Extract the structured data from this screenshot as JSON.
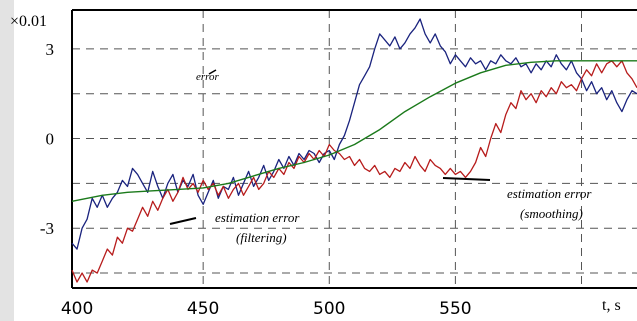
{
  "chart_data": {
    "type": "line",
    "ylabel_scale": "×0.01",
    "xlabel": "t, s",
    "xlim": [
      398,
      622
    ],
    "ylim": [
      -5,
      4.3
    ],
    "x_ticks": [
      400,
      450,
      500,
      550
    ],
    "y_ticks": [
      {
        "value": 3,
        "label": "3"
      },
      {
        "value": 0,
        "label": "0"
      },
      {
        "value": -3,
        "label": "-3"
      }
    ],
    "grid": true,
    "annotations": {
      "error": "error",
      "filter_line1": "estimation error",
      "filter_line2": "(filtering)",
      "smooth_line1": "estimation error",
      "smooth_line2": "(smoothing)"
    },
    "colors": {
      "error": "#1a237e",
      "filtering": "#b71c1c",
      "smoothing": "#1b7a1b"
    },
    "series": [
      {
        "key": "error",
        "points": [
          [
            398,
            -3.5
          ],
          [
            400,
            -3.7
          ],
          [
            402,
            -3.0
          ],
          [
            404,
            -2.7
          ],
          [
            406,
            -2.0
          ],
          [
            408,
            -2.3
          ],
          [
            410,
            -1.9
          ],
          [
            412,
            -2.3
          ],
          [
            414,
            -2.0
          ],
          [
            416,
            -1.8
          ],
          [
            418,
            -1.4
          ],
          [
            420,
            -1.6
          ],
          [
            422,
            -1.0
          ],
          [
            424,
            -1.2
          ],
          [
            426,
            -1.5
          ],
          [
            428,
            -1.8
          ],
          [
            430,
            -1.1
          ],
          [
            432,
            -1.6
          ],
          [
            434,
            -2.0
          ],
          [
            436,
            -1.5
          ],
          [
            438,
            -1.2
          ],
          [
            440,
            -1.8
          ],
          [
            442,
            -1.4
          ],
          [
            444,
            -1.6
          ],
          [
            446,
            -1.2
          ],
          [
            448,
            -1.9
          ],
          [
            450,
            -2.2
          ],
          [
            452,
            -1.8
          ],
          [
            454,
            -1.4
          ],
          [
            456,
            -2.0
          ],
          [
            458,
            -1.6
          ],
          [
            460,
            -1.7
          ],
          [
            462,
            -1.3
          ],
          [
            464,
            -1.9
          ],
          [
            466,
            -1.5
          ],
          [
            468,
            -1.1
          ],
          [
            470,
            -1.6
          ],
          [
            472,
            -1.3
          ],
          [
            474,
            -0.9
          ],
          [
            476,
            -1.4
          ],
          [
            478,
            -1.1
          ],
          [
            480,
            -0.7
          ],
          [
            482,
            -1.0
          ],
          [
            484,
            -0.6
          ],
          [
            486,
            -0.9
          ],
          [
            488,
            -0.5
          ],
          [
            490,
            -0.7
          ],
          [
            492,
            -0.4
          ],
          [
            494,
            -0.5
          ],
          [
            496,
            -0.8
          ],
          [
            498,
            -0.5
          ],
          [
            500,
            -0.4
          ],
          [
            502,
            -0.7
          ],
          [
            504,
            -0.2
          ],
          [
            506,
            0.1
          ],
          [
            508,
            0.6
          ],
          [
            510,
            1.2
          ],
          [
            512,
            1.8
          ],
          [
            514,
            2.1
          ],
          [
            516,
            2.4
          ],
          [
            518,
            3.0
          ],
          [
            520,
            3.5
          ],
          [
            522,
            3.3
          ],
          [
            524,
            3.1
          ],
          [
            526,
            3.4
          ],
          [
            528,
            3.0
          ],
          [
            530,
            3.2
          ],
          [
            532,
            3.5
          ],
          [
            534,
            3.7
          ],
          [
            536,
            4.0
          ],
          [
            538,
            3.5
          ],
          [
            540,
            3.2
          ],
          [
            542,
            3.5
          ],
          [
            544,
            3.1
          ],
          [
            546,
            2.9
          ],
          [
            548,
            2.5
          ],
          [
            550,
            2.8
          ],
          [
            552,
            2.6
          ],
          [
            554,
            2.4
          ],
          [
            556,
            2.7
          ],
          [
            558,
            2.5
          ],
          [
            560,
            2.6
          ],
          [
            562,
            2.3
          ],
          [
            564,
            2.6
          ],
          [
            566,
            2.5
          ],
          [
            568,
            2.8
          ],
          [
            570,
            2.6
          ],
          [
            572,
            2.5
          ],
          [
            574,
            2.7
          ],
          [
            576,
            2.4
          ],
          [
            578,
            2.5
          ],
          [
            580,
            2.2
          ],
          [
            582,
            2.5
          ],
          [
            584,
            2.3
          ],
          [
            586,
            2.6
          ],
          [
            588,
            2.4
          ],
          [
            590,
            2.8
          ],
          [
            592,
            2.5
          ],
          [
            594,
            2.3
          ],
          [
            596,
            2.6
          ],
          [
            598,
            2.2
          ],
          [
            600,
            2.0
          ],
          [
            602,
            1.6
          ],
          [
            604,
            1.9
          ],
          [
            606,
            1.5
          ],
          [
            608,
            1.7
          ],
          [
            610,
            1.3
          ],
          [
            612,
            1.6
          ],
          [
            614,
            1.2
          ],
          [
            616,
            0.9
          ],
          [
            618,
            1.3
          ],
          [
            620,
            1.6
          ],
          [
            622,
            1.5
          ]
        ]
      },
      {
        "key": "filtering",
        "points": [
          [
            398,
            -4.4
          ],
          [
            400,
            -4.8
          ],
          [
            402,
            -4.5
          ],
          [
            404,
            -4.8
          ],
          [
            406,
            -4.4
          ],
          [
            408,
            -4.5
          ],
          [
            410,
            -4.1
          ],
          [
            412,
            -3.7
          ],
          [
            414,
            -3.9
          ],
          [
            416,
            -3.3
          ],
          [
            418,
            -3.5
          ],
          [
            420,
            -3.0
          ],
          [
            422,
            -3.1
          ],
          [
            424,
            -2.7
          ],
          [
            426,
            -2.3
          ],
          [
            428,
            -2.6
          ],
          [
            430,
            -2.1
          ],
          [
            432,
            -2.4
          ],
          [
            434,
            -2.0
          ],
          [
            436,
            -1.7
          ],
          [
            438,
            -2.1
          ],
          [
            440,
            -1.8
          ],
          [
            442,
            -1.3
          ],
          [
            444,
            -1.7
          ],
          [
            446,
            -1.5
          ],
          [
            448,
            -1.8
          ],
          [
            450,
            -1.4
          ],
          [
            452,
            -1.7
          ],
          [
            454,
            -1.5
          ],
          [
            456,
            -1.9
          ],
          [
            458,
            -1.6
          ],
          [
            460,
            -2.0
          ],
          [
            462,
            -1.7
          ],
          [
            464,
            -1.5
          ],
          [
            466,
            -1.9
          ],
          [
            468,
            -1.6
          ],
          [
            470,
            -1.3
          ],
          [
            472,
            -1.7
          ],
          [
            474,
            -1.5
          ],
          [
            476,
            -1.1
          ],
          [
            478,
            -1.3
          ],
          [
            480,
            -1.0
          ],
          [
            482,
            -1.2
          ],
          [
            484,
            -0.8
          ],
          [
            486,
            -1.0
          ],
          [
            488,
            -0.6
          ],
          [
            490,
            -0.8
          ],
          [
            492,
            -0.5
          ],
          [
            494,
            -0.7
          ],
          [
            496,
            -0.4
          ],
          [
            498,
            -0.6
          ],
          [
            500,
            -0.2
          ],
          [
            502,
            -0.4
          ],
          [
            504,
            -0.5
          ],
          [
            506,
            -0.7
          ],
          [
            508,
            -0.6
          ],
          [
            510,
            -0.9
          ],
          [
            512,
            -0.7
          ],
          [
            514,
            -1.0
          ],
          [
            516,
            -1.1
          ],
          [
            518,
            -0.9
          ],
          [
            520,
            -1.2
          ],
          [
            522,
            -1.1
          ],
          [
            524,
            -1.3
          ],
          [
            526,
            -1.0
          ],
          [
            528,
            -1.1
          ],
          [
            530,
            -0.8
          ],
          [
            532,
            -1.0
          ],
          [
            534,
            -0.6
          ],
          [
            536,
            -0.9
          ],
          [
            538,
            -1.1
          ],
          [
            540,
            -0.7
          ],
          [
            542,
            -0.9
          ],
          [
            544,
            -1.0
          ],
          [
            546,
            -1.2
          ],
          [
            548,
            -1.0
          ],
          [
            550,
            -1.2
          ],
          [
            552,
            -1.1
          ],
          [
            554,
            -1.3
          ],
          [
            556,
            -1.1
          ],
          [
            558,
            -0.8
          ],
          [
            560,
            -0.3
          ],
          [
            562,
            -0.6
          ],
          [
            564,
            0.0
          ],
          [
            566,
            0.5
          ],
          [
            568,
            0.2
          ],
          [
            570,
            0.8
          ],
          [
            572,
            1.2
          ],
          [
            574,
            1.0
          ],
          [
            576,
            1.6
          ],
          [
            578,
            1.3
          ],
          [
            580,
            1.5
          ],
          [
            582,
            1.2
          ],
          [
            584,
            1.6
          ],
          [
            586,
            1.4
          ],
          [
            588,
            1.7
          ],
          [
            590,
            1.5
          ],
          [
            592,
            1.9
          ],
          [
            594,
            1.7
          ],
          [
            596,
            1.8
          ],
          [
            598,
            1.6
          ],
          [
            600,
            2.0
          ],
          [
            602,
            2.3
          ],
          [
            604,
            2.1
          ],
          [
            606,
            2.5
          ],
          [
            608,
            2.2
          ],
          [
            610,
            2.5
          ],
          [
            612,
            2.6
          ],
          [
            614,
            2.4
          ],
          [
            616,
            2.6
          ],
          [
            618,
            2.2
          ],
          [
            620,
            2.0
          ],
          [
            622,
            1.7
          ]
        ]
      },
      {
        "key": "smoothing",
        "points": [
          [
            398,
            -2.1
          ],
          [
            410,
            -1.9
          ],
          [
            420,
            -1.8
          ],
          [
            430,
            -1.75
          ],
          [
            440,
            -1.7
          ],
          [
            450,
            -1.65
          ],
          [
            460,
            -1.5
          ],
          [
            470,
            -1.25
          ],
          [
            480,
            -1.0
          ],
          [
            490,
            -0.8
          ],
          [
            500,
            -0.55
          ],
          [
            510,
            -0.2
          ],
          [
            520,
            0.3
          ],
          [
            530,
            0.9
          ],
          [
            540,
            1.4
          ],
          [
            550,
            1.85
          ],
          [
            560,
            2.2
          ],
          [
            570,
            2.45
          ],
          [
            580,
            2.55
          ],
          [
            590,
            2.6
          ],
          [
            600,
            2.6
          ],
          [
            610,
            2.6
          ],
          [
            622,
            2.6
          ]
        ]
      }
    ]
  }
}
